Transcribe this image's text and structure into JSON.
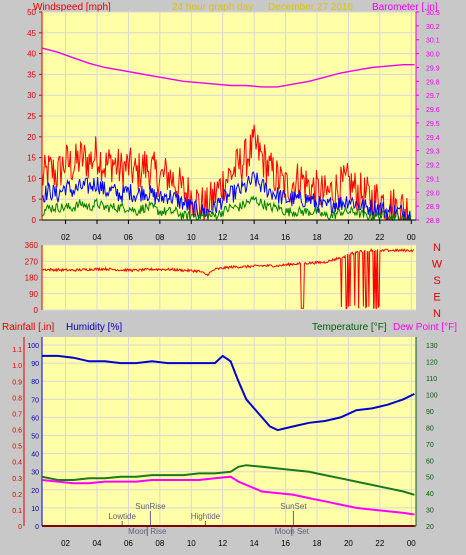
{
  "header": {
    "left_label": "Windspeed [mph]",
    "center_label": "24 hour graph day",
    "date": "December 27 2016",
    "right_label": "Barometer [.in]"
  },
  "colors": {
    "background": "#c8c8c8",
    "plot_bg": "#ffffa8",
    "grid": "#d8d8d8",
    "wind_gust": "#ff0000",
    "wind_avg": "#0000ff",
    "wind_low": "#008000",
    "barometer": "#ee00ee",
    "direction": "#ff0000",
    "humidity": "#0000cc",
    "temperature": "#1a7a1a",
    "dewpoint": "#ff00ff",
    "rain": "#ff0000",
    "label_yellow": "#d8c800",
    "label_blue": "#0000aa",
    "label_green": "#006000",
    "label_magenta": "#ff00ff",
    "label_red": "#e00000"
  },
  "compass": [
    "N",
    "W",
    "S",
    "E",
    "N"
  ],
  "lower_labels": {
    "rain": "Rainfall [.in]",
    "humidity": "Humidity [%]",
    "temperature": "Temperature [°F]",
    "dewpoint": "Dew Point [°F]"
  },
  "events": [
    {
      "label": "Lowtide",
      "hour": 5.6,
      "row": 1
    },
    {
      "label": "SunRise",
      "hour": 7.4,
      "row": 0
    },
    {
      "label": "Moon Rise",
      "hour": 7.2,
      "row": 2
    },
    {
      "label": "Hightide",
      "hour": 10.9,
      "row": 1
    },
    {
      "label": "SunSet",
      "hour": 16.5,
      "row": 0
    },
    {
      "label": "Moon Set",
      "hour": 16.4,
      "row": 2
    }
  ],
  "chart_data": [
    {
      "type": "line",
      "title": "Windspeed [mph]",
      "x_ticks": [
        "02",
        "04",
        "06",
        "08",
        "10",
        "12",
        "14",
        "16",
        "18",
        "20",
        "22",
        "00"
      ],
      "x_range_hours": [
        0.5,
        24.3
      ],
      "ylim": [
        0,
        50
      ],
      "yticks": [
        0,
        5,
        10,
        15,
        20,
        25,
        30,
        35,
        40,
        45,
        50
      ],
      "y2lim": [
        28.8,
        30.3
      ],
      "y2ticks": [
        28.8,
        28.9,
        29.0,
        29.1,
        29.2,
        29.3,
        29.4,
        29.5,
        29.6,
        29.7,
        29.8,
        29.9,
        30.0,
        30.1,
        30.2,
        30.3
      ],
      "series": [
        {
          "name": "Gust",
          "axis": "left",
          "x": [
            0.5,
            1,
            1.5,
            2,
            2.5,
            3,
            3.5,
            4,
            4.5,
            5,
            5.5,
            6,
            6.5,
            7,
            7.5,
            8,
            8.5,
            9,
            9.5,
            10,
            10.5,
            11,
            11.5,
            12,
            12.5,
            13,
            13.5,
            14,
            14.5,
            15,
            15.5,
            16,
            16.5,
            17,
            17.5,
            18,
            18.5,
            19,
            19.5,
            20,
            20.5,
            21,
            21.5,
            22,
            22.5,
            23,
            23.5,
            24
          ],
          "y": [
            10,
            12,
            11,
            14,
            13,
            15,
            14,
            16,
            13,
            14,
            12,
            13,
            11,
            13,
            12,
            10,
            11,
            9,
            7,
            6,
            4,
            3,
            6,
            9,
            11,
            13,
            15,
            18,
            15,
            12,
            10,
            8,
            9,
            10,
            8,
            7,
            6,
            7,
            8,
            9,
            7,
            6,
            5,
            5,
            4,
            3,
            3,
            2
          ]
        },
        {
          "name": "Avg",
          "axis": "left",
          "x": [
            0.5,
            1,
            1.5,
            2,
            2.5,
            3,
            3.5,
            4,
            4.5,
            5,
            5.5,
            6,
            6.5,
            7,
            7.5,
            8,
            8.5,
            9,
            9.5,
            10,
            10.5,
            11,
            11.5,
            12,
            12.5,
            13,
            13.5,
            14,
            14.5,
            15,
            15.5,
            16,
            16.5,
            17,
            17.5,
            18,
            18.5,
            19,
            19.5,
            20,
            20.5,
            21,
            21.5,
            22,
            22.5,
            23,
            23.5,
            24
          ],
          "y": [
            6,
            7,
            6,
            8,
            7,
            8,
            8,
            9,
            7,
            7,
            6,
            7,
            6,
            7,
            6,
            5,
            6,
            5,
            4,
            3,
            2,
            2,
            3,
            5,
            6,
            7,
            8,
            10,
            8,
            7,
            6,
            5,
            5,
            5,
            5,
            4,
            3,
            4,
            4,
            5,
            4,
            3,
            3,
            3,
            2,
            2,
            2,
            1
          ]
        },
        {
          "name": "Low",
          "axis": "left",
          "x": [
            0.5,
            1,
            1.5,
            2,
            2.5,
            3,
            3.5,
            4,
            4.5,
            5,
            5.5,
            6,
            6.5,
            7,
            7.5,
            8,
            8.5,
            9,
            9.5,
            10,
            10.5,
            11,
            11.5,
            12,
            12.5,
            13,
            13.5,
            14,
            14.5,
            15,
            15.5,
            16,
            16.5,
            17,
            17.5,
            18,
            18.5,
            19,
            19.5,
            20,
            20.5,
            21,
            21.5,
            22,
            22.5,
            23,
            23.5,
            24
          ],
          "y": [
            2,
            3,
            3,
            3,
            3,
            4,
            3,
            4,
            3,
            3,
            3,
            3,
            2,
            3,
            3,
            2,
            2,
            2,
            1,
            1,
            1,
            1,
            1,
            2,
            3,
            3,
            4,
            5,
            4,
            3,
            3,
            2,
            2,
            2,
            2,
            2,
            1,
            1,
            2,
            2,
            2,
            1,
            1,
            1,
            1,
            1,
            0,
            0
          ]
        },
        {
          "name": "Barometer",
          "axis": "right",
          "x": [
            0.5,
            1.5,
            2.5,
            3.5,
            4.5,
            5.5,
            6.5,
            7.5,
            8.5,
            9.5,
            10.5,
            11.5,
            12.5,
            13.5,
            14.5,
            15.5,
            16.5,
            17.5,
            18.5,
            19.5,
            20.5,
            21.5,
            22.5,
            23.5,
            24.2
          ],
          "y": [
            30.04,
            30.01,
            29.97,
            29.93,
            29.9,
            29.88,
            29.86,
            29.84,
            29.82,
            29.8,
            29.79,
            29.78,
            29.77,
            29.77,
            29.76,
            29.76,
            29.78,
            29.8,
            29.83,
            29.86,
            29.88,
            29.9,
            29.91,
            29.92,
            29.92
          ]
        }
      ]
    },
    {
      "type": "line",
      "title": "Wind Direction",
      "ylim": [
        0,
        360
      ],
      "yticks": [
        0,
        90,
        180,
        270,
        360
      ],
      "series": [
        {
          "name": "Direction",
          "x": [
            0.5,
            1.5,
            2.5,
            3.5,
            4.5,
            5.5,
            6.5,
            7.5,
            8.5,
            9.5,
            10.5,
            11.0,
            11.5,
            12.5,
            13.5,
            14.5,
            15.5,
            16.5,
            17.5,
            18.5,
            19.5,
            20.5,
            21.5,
            22.5,
            23.5,
            24.2
          ],
          "y": [
            225,
            222,
            220,
            225,
            228,
            222,
            220,
            225,
            225,
            220,
            215,
            195,
            225,
            238,
            240,
            245,
            245,
            255,
            260,
            265,
            290,
            320,
            330,
            330,
            330,
            330
          ]
        }
      ]
    },
    {
      "type": "line",
      "title": "",
      "ylim_humidity": [
        0,
        100
      ],
      "yticks_humidity": [
        0,
        10,
        20,
        30,
        40,
        50,
        60,
        70,
        80,
        90,
        100
      ],
      "ylim_rain": [
        0,
        1.2
      ],
      "yticks_rain": [
        0,
        0.1,
        0.2,
        0.3,
        0.4,
        0.5,
        0.6,
        0.7,
        0.8,
        0.9,
        1.0,
        1.1
      ],
      "ylim_temp": [
        20,
        135
      ],
      "yticks_temp": [
        20,
        30,
        40,
        50,
        60,
        70,
        80,
        90,
        100,
        110,
        120,
        130
      ],
      "series": [
        {
          "name": "Humidity",
          "axis": "humidity",
          "x": [
            0.5,
            1.5,
            2.5,
            3.5,
            4.5,
            5.5,
            6.5,
            7.5,
            8.5,
            9.5,
            10.5,
            11.5,
            12.0,
            12.5,
            13.0,
            13.5,
            14.0,
            14.5,
            15.0,
            15.5,
            16.5,
            17.5,
            18.5,
            19.5,
            20.5,
            21.5,
            22.5,
            23.5,
            24.2
          ],
          "y": [
            94,
            94,
            93,
            91,
            91,
            90,
            90,
            91,
            90,
            90,
            90,
            90,
            94,
            91,
            80,
            70,
            65,
            60,
            55,
            53,
            55,
            57,
            58,
            60,
            64,
            65,
            67,
            70,
            73
          ]
        },
        {
          "name": "Temperature",
          "axis": "temp",
          "x": [
            0.5,
            1.5,
            2.5,
            3.5,
            4.5,
            5.5,
            6.5,
            7.5,
            8.5,
            9.5,
            10.5,
            11.5,
            12.5,
            13.0,
            13.5,
            14.5,
            15.5,
            16.5,
            17.5,
            18.5,
            19.5,
            20.5,
            21.5,
            22.5,
            23.5,
            24.2
          ],
          "y": [
            50,
            48,
            48,
            49,
            49,
            50,
            50,
            51,
            51,
            51,
            52,
            52,
            53,
            56,
            57,
            56,
            55,
            54,
            53,
            51,
            49,
            47,
            45,
            43,
            41,
            39
          ]
        },
        {
          "name": "Dew Point",
          "axis": "temp",
          "x": [
            0.5,
            1.5,
            2.5,
            3.5,
            4.5,
            5.5,
            6.5,
            7.5,
            8.5,
            9.5,
            10.5,
            11.5,
            12.5,
            13.0,
            13.5,
            14.5,
            15.5,
            16.5,
            17.5,
            18.5,
            19.5,
            20.5,
            21.5,
            22.5,
            23.5,
            24.2
          ],
          "y": [
            48,
            47,
            46,
            46,
            47,
            47,
            47,
            48,
            48,
            48,
            48,
            49,
            50,
            47,
            45,
            41,
            40,
            39,
            37,
            35,
            33,
            31,
            30,
            29,
            28,
            27
          ]
        },
        {
          "name": "Rainfall",
          "axis": "rain",
          "x": [
            0.5,
            24.2
          ],
          "y": [
            0,
            0
          ]
        }
      ]
    }
  ]
}
